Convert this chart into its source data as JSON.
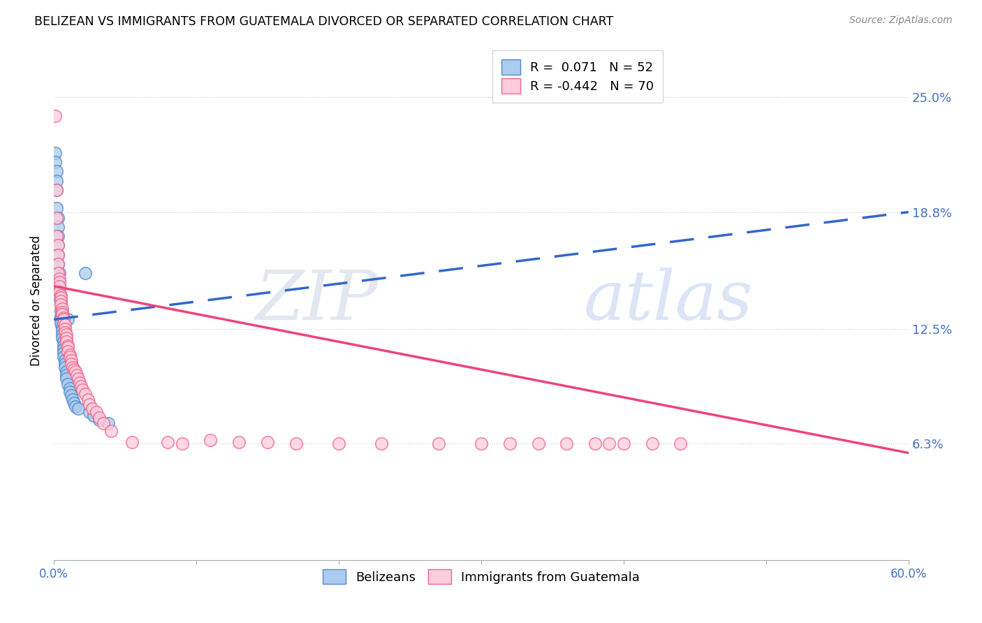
{
  "title": "BELIZEAN VS IMMIGRANTS FROM GUATEMALA DIVORCED OR SEPARATED CORRELATION CHART",
  "source": "Source: ZipAtlas.com",
  "ylabel_label": "Divorced or Separated",
  "ytick_labels": [
    "6.3%",
    "12.5%",
    "18.8%",
    "25.0%"
  ],
  "ytick_values": [
    0.063,
    0.125,
    0.188,
    0.25
  ],
  "xlim": [
    0.0,
    0.6
  ],
  "ylim": [
    0.0,
    0.28
  ],
  "watermark_zip": "ZIP",
  "watermark_atlas": "atlas",
  "legend_color1": "#7ab0e0",
  "legend_color2": "#ffaabb",
  "blue_scatter_color": "#aaccee",
  "pink_scatter_color": "#ffccdd",
  "blue_edge_color": "#5588cc",
  "pink_edge_color": "#ee6688",
  "blue_line_color": "#3366cc",
  "pink_line_color": "#ee4477",
  "blue_scatter_x": [
    0.001,
    0.001,
    0.002,
    0.002,
    0.002,
    0.002,
    0.003,
    0.003,
    0.003,
    0.003,
    0.003,
    0.003,
    0.004,
    0.004,
    0.004,
    0.004,
    0.004,
    0.005,
    0.005,
    0.005,
    0.005,
    0.005,
    0.005,
    0.006,
    0.006,
    0.006,
    0.006,
    0.007,
    0.007,
    0.007,
    0.007,
    0.007,
    0.008,
    0.008,
    0.008,
    0.009,
    0.009,
    0.009,
    0.01,
    0.01,
    0.011,
    0.011,
    0.012,
    0.013,
    0.014,
    0.015,
    0.017,
    0.022,
    0.025,
    0.028,
    0.032,
    0.038
  ],
  "blue_scatter_y": [
    0.22,
    0.215,
    0.21,
    0.205,
    0.2,
    0.19,
    0.185,
    0.18,
    0.175,
    0.17,
    0.165,
    0.16,
    0.155,
    0.15,
    0.148,
    0.145,
    0.142,
    0.14,
    0.138,
    0.135,
    0.132,
    0.13,
    0.128,
    0.126,
    0.124,
    0.122,
    0.12,
    0.118,
    0.116,
    0.114,
    0.112,
    0.11,
    0.108,
    0.106,
    0.104,
    0.102,
    0.1,
    0.098,
    0.13,
    0.095,
    0.093,
    0.091,
    0.089,
    0.087,
    0.085,
    0.083,
    0.082,
    0.155,
    0.08,
    0.078,
    0.076,
    0.074
  ],
  "pink_scatter_x": [
    0.001,
    0.002,
    0.002,
    0.002,
    0.003,
    0.003,
    0.003,
    0.003,
    0.004,
    0.004,
    0.004,
    0.004,
    0.005,
    0.005,
    0.005,
    0.005,
    0.006,
    0.006,
    0.006,
    0.007,
    0.007,
    0.007,
    0.008,
    0.008,
    0.008,
    0.009,
    0.009,
    0.009,
    0.01,
    0.01,
    0.01,
    0.011,
    0.011,
    0.012,
    0.012,
    0.013,
    0.014,
    0.015,
    0.016,
    0.017,
    0.018,
    0.019,
    0.02,
    0.022,
    0.024,
    0.025,
    0.027,
    0.03,
    0.032,
    0.035,
    0.04,
    0.055,
    0.08,
    0.09,
    0.11,
    0.13,
    0.15,
    0.17,
    0.2,
    0.23,
    0.27,
    0.3,
    0.32,
    0.34,
    0.36,
    0.38,
    0.39,
    0.4,
    0.42,
    0.44
  ],
  "pink_scatter_y": [
    0.24,
    0.2,
    0.185,
    0.175,
    0.17,
    0.165,
    0.16,
    0.155,
    0.152,
    0.15,
    0.148,
    0.145,
    0.143,
    0.142,
    0.14,
    0.138,
    0.136,
    0.134,
    0.133,
    0.131,
    0.13,
    0.128,
    0.127,
    0.125,
    0.123,
    0.122,
    0.12,
    0.118,
    0.116,
    0.115,
    0.113,
    0.111,
    0.11,
    0.108,
    0.106,
    0.104,
    0.103,
    0.102,
    0.1,
    0.098,
    0.096,
    0.094,
    0.092,
    0.09,
    0.087,
    0.084,
    0.082,
    0.08,
    0.077,
    0.074,
    0.07,
    0.064,
    0.064,
    0.063,
    0.065,
    0.064,
    0.064,
    0.063,
    0.063,
    0.063,
    0.063,
    0.063,
    0.063,
    0.063,
    0.063,
    0.063,
    0.063,
    0.063,
    0.063,
    0.063
  ],
  "blue_line_x": [
    0.0,
    0.6
  ],
  "blue_line_y_start": 0.13,
  "blue_line_y_end": 0.188,
  "pink_line_x": [
    0.0,
    0.6
  ],
  "pink_line_y_start": 0.148,
  "pink_line_y_end": 0.058,
  "legend1_R": "R = ",
  "legend1_R_val": " 0.071",
  "legend1_N": "  N = ",
  "legend1_N_val": "52",
  "legend2_R": "R = ",
  "legend2_R_val": "-0.442",
  "legend2_N": "  N = ",
  "legend2_N_val": "70"
}
